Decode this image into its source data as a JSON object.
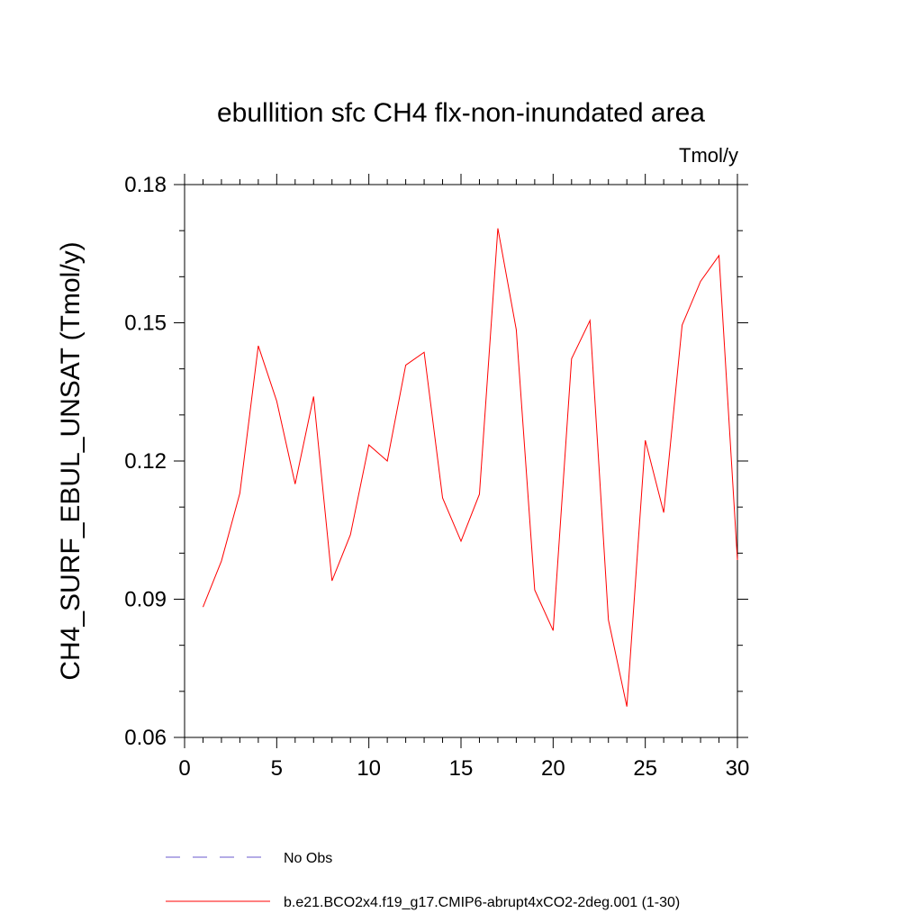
{
  "chart_data": {
    "type": "line",
    "title": "ebullition sfc CH4 flx-non-inundated area",
    "units": "Tmol/y",
    "xlabel": "",
    "ylabel": "CH4_SURF_EBUL_UNSAT  (Tmol/y)",
    "xlim": [
      0,
      30
    ],
    "ylim": [
      0.06,
      0.18
    ],
    "xticks": [
      0,
      5,
      10,
      15,
      20,
      25,
      30
    ],
    "xtick_labels": [
      "0",
      "5",
      "10",
      "15",
      "20",
      "25",
      "30"
    ],
    "yticks": [
      0.06,
      0.09,
      0.12,
      0.15,
      0.18
    ],
    "ytick_labels": [
      "0.06",
      "0.09",
      "0.12",
      "0.15",
      "0.18"
    ],
    "grid": false,
    "series": [
      {
        "name": "No Obs",
        "color": "#6a5acd",
        "dashed": true,
        "x": [],
        "values": []
      },
      {
        "name": "b.e21.BCO2x4.f19_g17.CMIP6-abrupt4xCO2-2deg.001 (1-30)",
        "color": "#ff0000",
        "dashed": false,
        "x": [
          1,
          2,
          3,
          4,
          5,
          6,
          7,
          8,
          9,
          10,
          11,
          12,
          13,
          14,
          15,
          16,
          17,
          18,
          19,
          20,
          21,
          22,
          23,
          24,
          25,
          26,
          27,
          28,
          29,
          30
        ],
        "values": [
          0.0883,
          0.0983,
          0.113,
          0.145,
          0.133,
          0.115,
          0.134,
          0.094,
          0.104,
          0.1235,
          0.12,
          0.1408,
          0.1436,
          0.112,
          0.1026,
          0.1128,
          0.1705,
          0.1485,
          0.092,
          0.0832,
          0.1422,
          0.1505,
          0.0855,
          0.0667,
          0.1245,
          0.1088,
          0.1495,
          0.159,
          0.1646,
          0.0985
        ]
      }
    ],
    "legend_position": "bottom"
  }
}
